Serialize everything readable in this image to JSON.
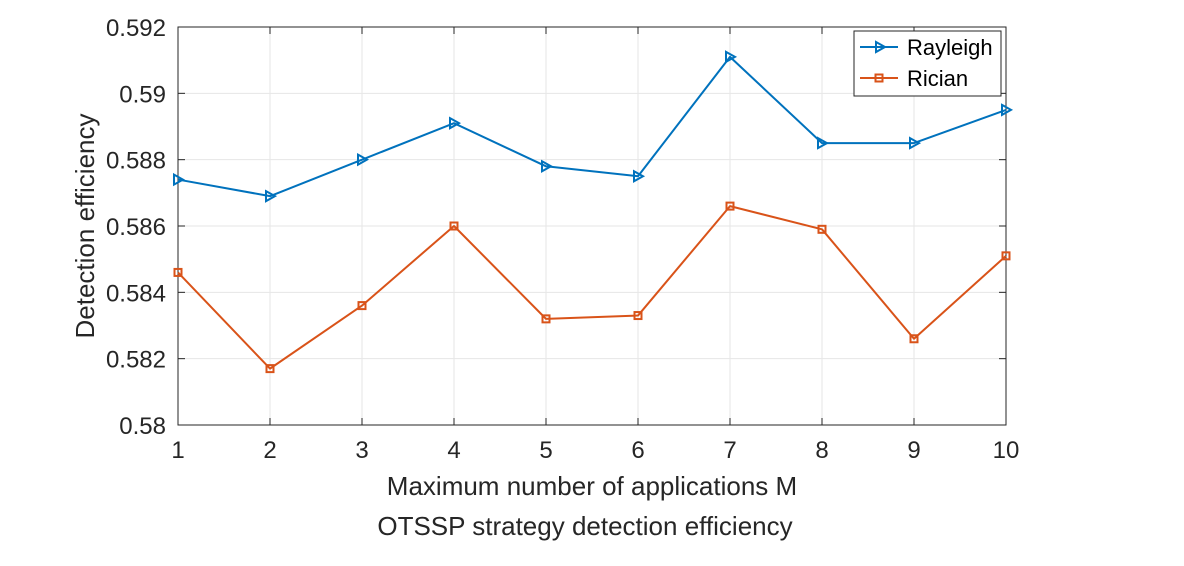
{
  "chart_data": {
    "type": "line",
    "caption": "OTSSP strategy detection efficiency",
    "xlabel": "Maximum number of applications M",
    "ylabel": "Detection efficiency",
    "xlim": [
      1,
      10
    ],
    "ylim": [
      0.58,
      0.592
    ],
    "x_ticks": [
      1,
      2,
      3,
      4,
      5,
      6,
      7,
      8,
      9,
      10
    ],
    "y_ticks": [
      0.58,
      0.582,
      0.584,
      0.586,
      0.588,
      0.59,
      0.592
    ],
    "y_tick_labels": [
      "0.58",
      "0.582",
      "0.584",
      "0.586",
      "0.588",
      "0.59",
      "0.592"
    ],
    "grid": true,
    "legend_position": "top-right",
    "x": [
      1,
      2,
      3,
      4,
      5,
      6,
      7,
      8,
      9,
      10
    ],
    "series": [
      {
        "name": "Rayleigh",
        "color": "#0072bd",
        "marker": "triangle-right",
        "values": [
          0.5874,
          0.5869,
          0.588,
          0.5891,
          0.5878,
          0.5875,
          0.5911,
          0.5885,
          0.5885,
          0.5895
        ]
      },
      {
        "name": "Rician",
        "color": "#d95319",
        "marker": "square",
        "values": [
          0.5846,
          0.5817,
          0.5836,
          0.586,
          0.5832,
          0.5833,
          0.5866,
          0.5859,
          0.5826,
          0.5851
        ]
      }
    ]
  }
}
